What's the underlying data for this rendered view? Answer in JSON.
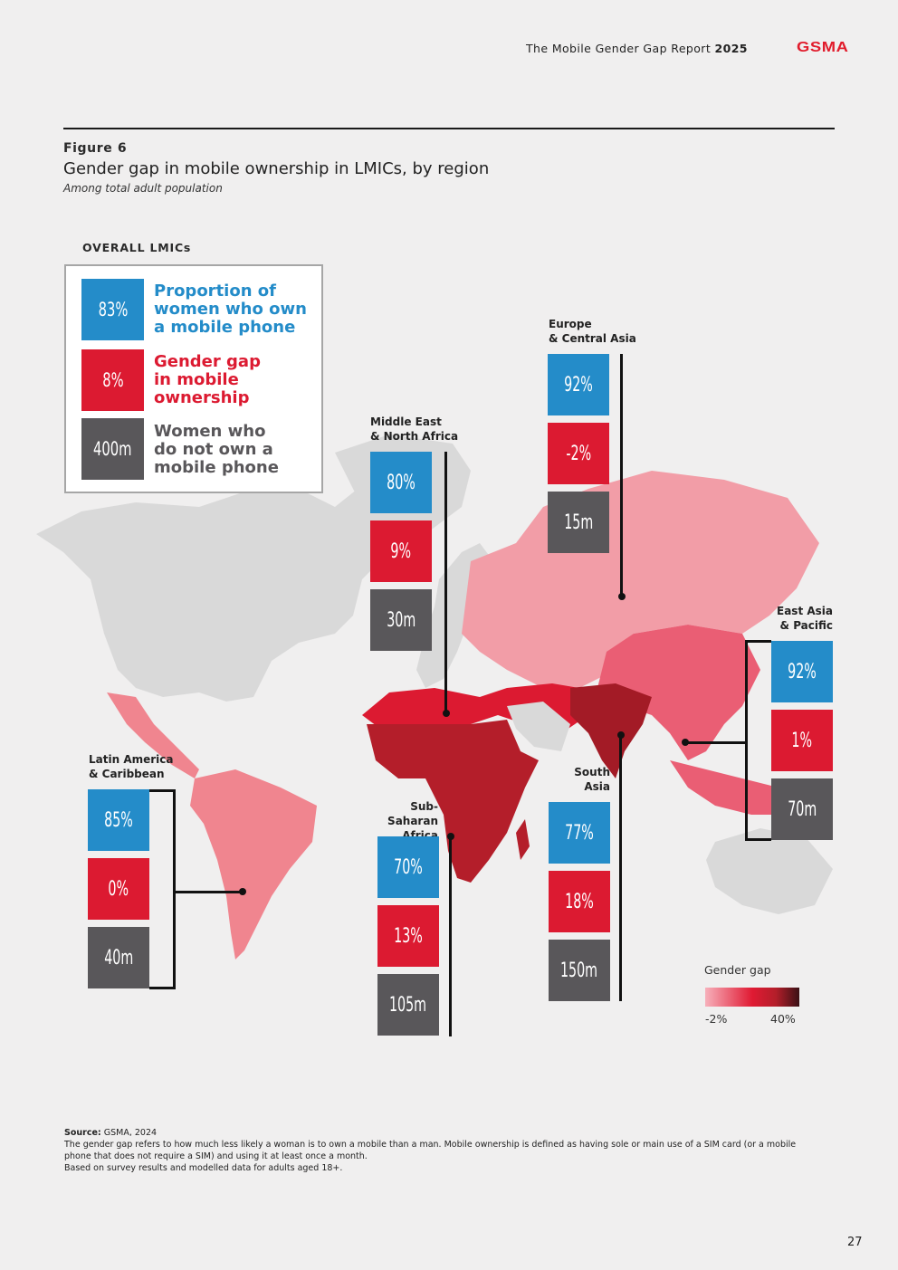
{
  "header": {
    "report_title": "The Mobile Gender Gap Report",
    "report_year": "2025",
    "logo_text": "GSMA"
  },
  "figure": {
    "label": "Figure 6",
    "title": "Gender gap in mobile ownership in LMICs, by region",
    "subtitle": "Among total adult population"
  },
  "overall": {
    "label": "OVERALL LMICs",
    "ownership": {
      "value": "83%",
      "text": [
        "Proportion of",
        "women who own",
        "a mobile phone"
      ]
    },
    "gap": {
      "value": "8%",
      "text": [
        "Gender gap",
        "in mobile",
        "ownership"
      ]
    },
    "unconnected": {
      "value": "400m",
      "text": [
        "Women who",
        "do not own a",
        "mobile phone"
      ]
    }
  },
  "regions": [
    {
      "name": [
        "Europe",
        "& Central Asia"
      ],
      "ownership": "92%",
      "gap": "-2%",
      "unconnected": "15m"
    },
    {
      "name": [
        "Middle East",
        "& North Africa"
      ],
      "ownership": "80%",
      "gap": "9%",
      "unconnected": "30m"
    },
    {
      "name": [
        "East Asia",
        "& Pacific"
      ],
      "ownership": "92%",
      "gap": "1%",
      "unconnected": "70m"
    },
    {
      "name": [
        "Latin America",
        "& Caribbean"
      ],
      "ownership": "85%",
      "gap": "0%",
      "unconnected": "40m"
    },
    {
      "name": [
        "Sub-Saharan",
        "Africa"
      ],
      "ownership": "70%",
      "gap": "13%",
      "unconnected": "105m"
    },
    {
      "name": [
        "South",
        "Asia"
      ],
      "ownership": "77%",
      "gap": "18%",
      "unconnected": "150m"
    }
  ],
  "colors": {
    "ownership": "#248cc9",
    "gap": "#dc1a31",
    "unconnected": "#59575a",
    "map_neutral": "#d9d9d9",
    "scale_low": "#f7b0bb",
    "scale_high": "#3a1115"
  },
  "gap_scale": {
    "title": "Gender gap",
    "min_label": "-2%",
    "max_label": "40%",
    "min": -2,
    "max": 40
  },
  "footnote": {
    "source_label": "Source:",
    "source_text": "GSMA, 2024",
    "lines": [
      "The gender gap refers to how much less likely a woman is to own a mobile than a man. Mobile ownership is defined as having sole or main use of a SIM card (or a mobile",
      "phone that does not require a SIM) and using it at least once a month.",
      "Based on survey results and modelled data for adults aged 18+."
    ]
  },
  "page_number": "27"
}
